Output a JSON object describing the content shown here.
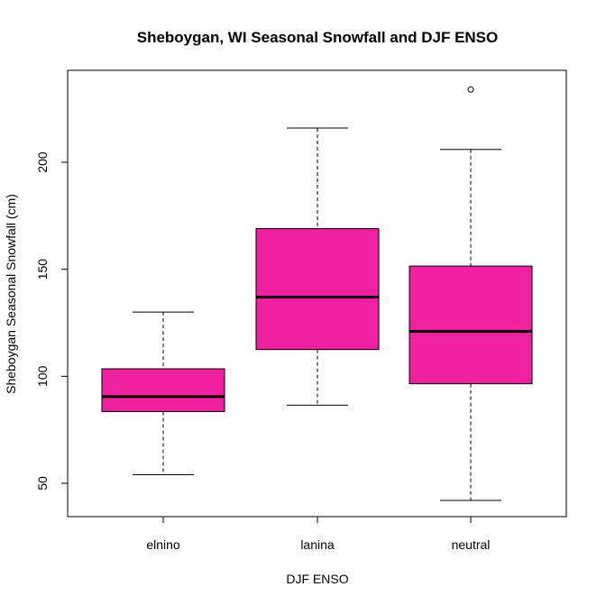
{
  "chart_data": {
    "type": "boxplot",
    "title": "Sheboygan, WI Seasonal Snowfall and DJF ENSO",
    "xlabel": "DJF ENSO",
    "ylabel": "Sheboygan Seasonal Snowfall (cm)",
    "categories": [
      "elnino",
      "lanina",
      "neutral"
    ],
    "boxes": [
      {
        "category": "elnino",
        "whisker_low": 54,
        "q1": 83.5,
        "median": 90.5,
        "q3": 103.5,
        "whisker_high": 130,
        "outliers": []
      },
      {
        "category": "lanina",
        "whisker_low": 86.5,
        "q1": 112.5,
        "median": 137,
        "q3": 169,
        "whisker_high": 216,
        "outliers": []
      },
      {
        "category": "neutral",
        "whisker_low": 42,
        "q1": 96.5,
        "median": 121,
        "q3": 151.5,
        "whisker_high": 206,
        "outliers": [
          234
        ]
      }
    ],
    "yticks": [
      50,
      100,
      150,
      200
    ],
    "ylim": [
      35,
      240
    ],
    "box_color": "#f0219f",
    "grid": false
  }
}
